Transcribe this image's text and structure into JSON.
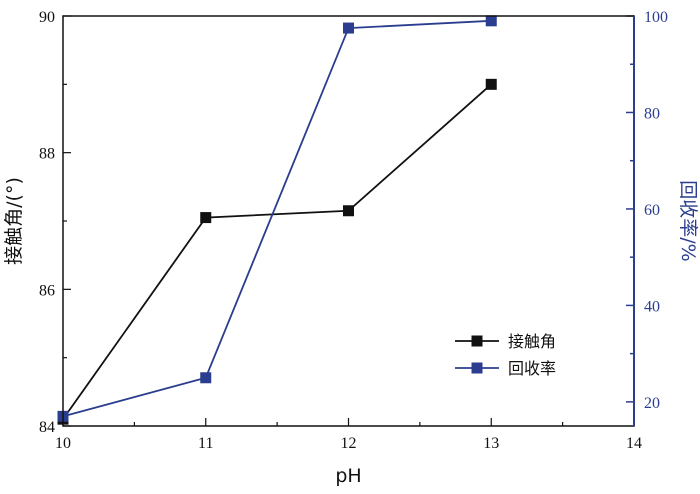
{
  "chart_data": {
    "type": "line",
    "xlabel": "pH",
    "ylabel_left": "接触角/(°)",
    "ylabel_right": "回收率/%",
    "xlim": [
      10,
      14
    ],
    "ylim_left": [
      84,
      90
    ],
    "ylim_right": [
      15,
      100
    ],
    "x_ticks": [
      10,
      11,
      12,
      13,
      14
    ],
    "y_left_ticks": [
      84,
      86,
      88,
      90
    ],
    "y_right_ticks": [
      20,
      40,
      60,
      80,
      100
    ],
    "grid": false,
    "legend_position": "lower-right",
    "series": [
      {
        "name": "接触角",
        "axis": "left",
        "color": "#111111",
        "marker": "square",
        "x": [
          10,
          11,
          12,
          13
        ],
        "y": [
          84.1,
          87.05,
          87.15,
          89.0
        ]
      },
      {
        "name": "回收率",
        "axis": "right",
        "color": "#2b3d8f",
        "marker": "square",
        "x": [
          10,
          11,
          12,
          13
        ],
        "y": [
          17,
          25,
          97.5,
          99
        ]
      }
    ]
  },
  "colors": {
    "left_axis": "#111111",
    "right_axis": "#2b3d8f"
  }
}
